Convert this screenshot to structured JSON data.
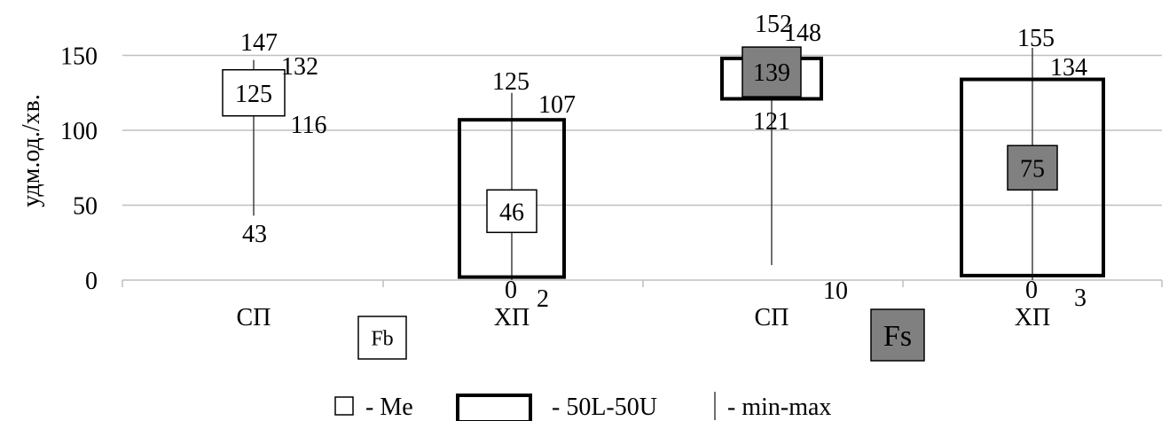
{
  "chart_data": {
    "type": "boxplot",
    "title": "",
    "ylabel": "удм.од./хв.",
    "xlabel": "",
    "ylim": [
      0,
      170
    ],
    "yticks": [
      0,
      50,
      100,
      150
    ],
    "grid": true,
    "categories": [
      "СП",
      "ХП",
      "СП",
      "ХП"
    ],
    "groups": [
      {
        "label": "Fb",
        "style": "white",
        "categories": [
          0,
          1
        ]
      },
      {
        "label": "Fs",
        "style": "gray",
        "categories": [
          2,
          3
        ]
      }
    ],
    "boxes": [
      {
        "category": "СП",
        "group": "Fb",
        "min": 43,
        "q1": 116,
        "median": 125,
        "q3": 132,
        "max": 147,
        "labels": {
          "min": "43",
          "q1": "116",
          "median": "125",
          "q3": "132",
          "max": "147"
        }
      },
      {
        "category": "ХП",
        "group": "Fb",
        "min": 0,
        "q1": 2,
        "median": 46,
        "q3": 107,
        "max": 125,
        "labels": {
          "min": "0",
          "q1": "2",
          "median": "46",
          "q3": "107",
          "max": "125"
        }
      },
      {
        "category": "СП",
        "group": "Fs",
        "min": 10,
        "q1": 121,
        "median": 139,
        "q3": 148,
        "max": 152,
        "labels": {
          "min": "10",
          "q1": "121",
          "median": "139",
          "q3": "148",
          "max": "152"
        }
      },
      {
        "category": "ХП",
        "group": "Fs",
        "min": 0,
        "q1": 3,
        "median": 75,
        "q3": 134,
        "max": 155,
        "labels": {
          "min": "0",
          "q1": "3",
          "median": "75",
          "q3": "134",
          "max": "155"
        }
      }
    ],
    "legend": {
      "placement": "bottom",
      "items": [
        {
          "symbol": "median-square",
          "label": "- Me"
        },
        {
          "symbol": "box",
          "label": "- 50L-50U"
        },
        {
          "symbol": "line",
          "label": "- min-max"
        }
      ]
    },
    "colors": {
      "fill_white": "#ffffff",
      "fill_gray": "#808080",
      "stroke": "#000000",
      "grid": "#bfbfbf",
      "whisker": "#404040"
    }
  }
}
